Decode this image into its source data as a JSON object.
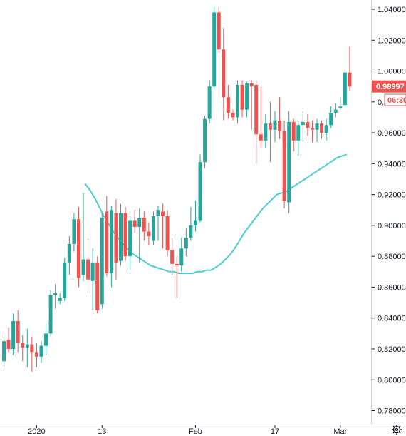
{
  "chart_data": {
    "type": "candlestick",
    "title": "",
    "xlabel": "",
    "ylabel": "",
    "ylim": [
      0.771,
      1.046
    ],
    "y_ticks": [
      "1.04000",
      "1.02000",
      "1.00000",
      "0.98000",
      "0.96000",
      "0.94000",
      "0.92000",
      "0.90000",
      "0.88000",
      "0.86000",
      "0.84000",
      "0.82000",
      "0.80000",
      "0.78000"
    ],
    "x_ticks": [
      "2020",
      "13",
      "Feb",
      "17",
      "Mar"
    ],
    "x_tick_bar_index": [
      7,
      21,
      41,
      58,
      72
    ],
    "grid": false,
    "up_color": "#26a69a",
    "down_color": "#ef5350",
    "ma_color": "#4fcbd4",
    "last_price_label": "0.98997",
    "countdown_label": "06:30",
    "ohlc": [
      [
        0.812,
        0.829,
        0.809,
        0.825
      ],
      [
        0.826,
        0.834,
        0.818,
        0.82
      ],
      [
        0.82,
        0.843,
        0.816,
        0.838
      ],
      [
        0.838,
        0.845,
        0.818,
        0.824
      ],
      [
        0.824,
        0.829,
        0.812,
        0.821
      ],
      [
        0.821,
        0.833,
        0.808,
        0.823
      ],
      [
        0.823,
        0.828,
        0.805,
        0.818
      ],
      [
        0.818,
        0.824,
        0.808,
        0.815
      ],
      [
        0.815,
        0.825,
        0.811,
        0.822
      ],
      [
        0.822,
        0.836,
        0.816,
        0.83
      ],
      [
        0.83,
        0.858,
        0.828,
        0.855
      ],
      [
        0.855,
        0.862,
        0.846,
        0.856
      ],
      [
        0.851,
        0.856,
        0.849,
        0.853
      ],
      [
        0.853,
        0.879,
        0.851,
        0.876
      ],
      [
        0.876,
        0.893,
        0.868,
        0.888
      ],
      [
        0.888,
        0.908,
        0.883,
        0.904
      ],
      [
        0.904,
        0.912,
        0.86,
        0.866
      ],
      [
        0.868,
        0.921,
        0.864,
        0.878
      ],
      [
        0.878,
        0.891,
        0.856,
        0.865
      ],
      [
        0.864,
        0.885,
        0.845,
        0.876
      ],
      [
        0.876,
        0.88,
        0.843,
        0.845
      ],
      [
        0.849,
        0.908,
        0.846,
        0.905
      ],
      [
        0.909,
        0.919,
        0.867,
        0.869
      ],
      [
        0.869,
        0.913,
        0.86,
        0.91
      ],
      [
        0.908,
        0.917,
        0.865,
        0.876
      ],
      [
        0.877,
        0.914,
        0.874,
        0.908
      ],
      [
        0.908,
        0.912,
        0.877,
        0.88
      ],
      [
        0.88,
        0.906,
        0.871,
        0.903
      ],
      [
        0.903,
        0.91,
        0.895,
        0.899
      ],
      [
        0.899,
        0.911,
        0.876,
        0.905
      ],
      [
        0.905,
        0.909,
        0.89,
        0.896
      ],
      [
        0.896,
        0.902,
        0.887,
        0.893
      ],
      [
        0.89,
        0.909,
        0.887,
        0.906
      ],
      [
        0.906,
        0.913,
        0.89,
        0.91
      ],
      [
        0.909,
        0.914,
        0.885,
        0.906
      ],
      [
        0.906,
        0.91,
        0.88,
        0.884
      ],
      [
        0.884,
        0.892,
        0.868,
        0.875
      ],
      [
        0.875,
        0.88,
        0.853,
        0.874
      ],
      [
        0.874,
        0.892,
        0.87,
        0.885
      ],
      [
        0.885,
        0.898,
        0.88,
        0.892
      ],
      [
        0.892,
        0.912,
        0.89,
        0.9
      ],
      [
        0.9,
        0.916,
        0.896,
        0.903
      ],
      [
        0.903,
        0.946,
        0.902,
        0.941
      ],
      [
        0.941,
        0.971,
        0.937,
        0.969
      ],
      [
        0.969,
        0.994,
        0.966,
        0.99
      ],
      [
        0.99,
        1.042,
        0.988,
        1.038
      ],
      [
        1.038,
        1.042,
        1.012,
        1.014
      ],
      [
        1.014,
        1.028,
        0.968,
        0.983
      ],
      [
        0.983,
        0.991,
        0.969,
        0.973
      ],
      [
        0.973,
        0.975,
        0.968,
        0.97
      ],
      [
        0.97,
        0.994,
        0.966,
        0.991
      ],
      [
        0.991,
        0.994,
        0.97,
        0.975
      ],
      [
        0.975,
        0.993,
        0.97,
        0.992
      ],
      [
        0.992,
        0.994,
        0.962,
        0.99
      ],
      [
        0.991,
        0.994,
        0.94,
        0.959
      ],
      [
        0.959,
        0.99,
        0.95,
        0.955
      ],
      [
        0.955,
        0.972,
        0.95,
        0.966
      ],
      [
        0.966,
        0.98,
        0.941,
        0.962
      ],
      [
        0.962,
        0.974,
        0.954,
        0.968
      ],
      [
        0.968,
        0.983,
        0.956,
        0.961
      ],
      [
        0.961,
        0.968,
        0.911,
        0.916
      ],
      [
        0.915,
        0.974,
        0.908,
        0.967
      ],
      [
        0.967,
        0.969,
        0.948,
        0.955
      ],
      [
        0.955,
        0.968,
        0.945,
        0.965
      ],
      [
        0.965,
        0.974,
        0.954,
        0.967
      ],
      [
        0.967,
        0.972,
        0.958,
        0.963
      ],
      [
        0.963,
        0.968,
        0.954,
        0.962
      ],
      [
        0.962,
        0.969,
        0.954,
        0.966
      ],
      [
        0.966,
        0.968,
        0.956,
        0.96
      ],
      [
        0.96,
        0.969,
        0.955,
        0.965
      ],
      [
        0.965,
        0.977,
        0.963,
        0.973
      ],
      [
        0.973,
        0.979,
        0.97,
        0.975
      ],
      [
        0.976,
        0.983,
        0.975,
        0.977
      ],
      [
        0.978,
        0.999,
        0.977,
        0.999
      ],
      [
        0.999,
        1.016,
        0.987,
        0.99
      ]
    ],
    "moving_average": [
      0.927,
      0.923,
      0.918,
      0.912,
      0.906,
      0.901,
      0.896,
      0.892,
      0.888,
      0.885,
      0.882,
      0.88,
      0.878,
      0.876,
      0.874,
      0.873,
      0.872,
      0.871,
      0.87,
      0.87,
      0.869,
      0.869,
      0.869,
      0.869,
      0.87,
      0.87,
      0.871,
      0.871,
      0.873,
      0.875,
      0.878,
      0.881,
      0.885,
      0.89,
      0.895,
      0.899,
      0.903,
      0.907,
      0.911,
      0.914,
      0.917,
      0.92,
      0.921,
      0.922,
      0.924,
      0.926,
      0.928,
      0.93,
      0.932,
      0.934,
      0.936,
      0.938,
      0.94,
      0.942,
      0.944,
      0.945,
      0.946
    ]
  }
}
